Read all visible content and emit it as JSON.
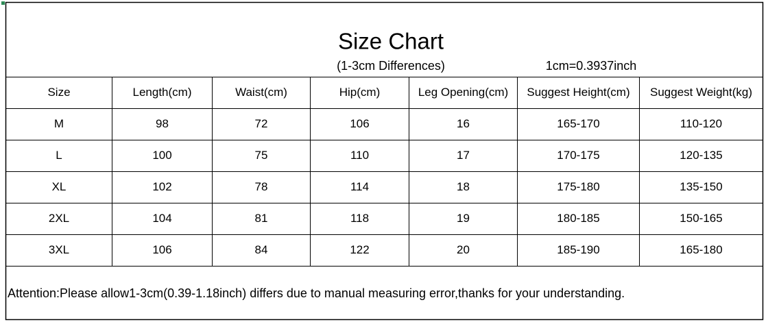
{
  "header": {
    "title": "Size Chart",
    "subtitle": "(1-3cm Differences)",
    "conversion": "1cm=0.3937inch"
  },
  "table": {
    "columns": [
      "Size",
      "Length(cm)",
      "Waist(cm)",
      "Hip(cm)",
      "Leg Opening(cm)",
      "Suggest Height(cm)",
      "Suggest Weight(kg)"
    ],
    "rows": [
      [
        "M",
        98,
        72,
        106,
        16,
        "165-170",
        "110-120"
      ],
      [
        "L",
        100,
        75,
        110,
        17,
        "170-175",
        "120-135"
      ],
      [
        "XL",
        102,
        78,
        114,
        18,
        "175-180",
        "135-150"
      ],
      [
        "2XL",
        104,
        81,
        118,
        19,
        "180-185",
        "150-165"
      ],
      [
        "3XL",
        106,
        84,
        122,
        20,
        "185-190",
        "165-180"
      ]
    ]
  },
  "footer": {
    "note": "Attention:Please allow1-3cm(0.39-1.18inch) differs due to manual measuring error,thanks for your understanding."
  }
}
